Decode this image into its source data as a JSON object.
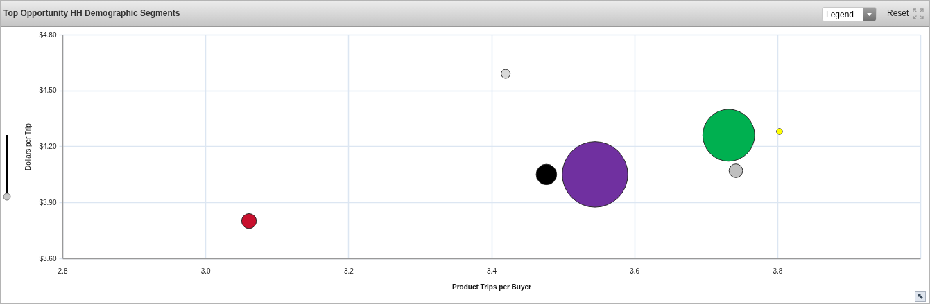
{
  "chart_data": {
    "type": "bubble",
    "title": "Top Opportunity HH Demographic Segments",
    "xlabel": "Product Trips per Buyer",
    "ylabel": "Dollars per Trip",
    "annotations": [
      "Legend",
      "Reset"
    ],
    "x": [
      3.061,
      3.42,
      3.477,
      3.545,
      3.732,
      3.742,
      3.803
    ],
    "values": [
      3.8,
      4.59,
      4.05,
      4.05,
      4.26,
      4.07,
      4.28
    ],
    "sizes": [
      0.051,
      0.019,
      0.098,
      1,
      0.627,
      0.043,
      0.008
    ],
    "colors": [
      "#c8102e",
      "#d9d9d9",
      "#000000",
      "#7030a0",
      "#00b050",
      "#bfbfbf",
      "#ffff00"
    ],
    "xlim": [
      2.8,
      4.0
    ],
    "xticks": [
      2.8,
      {
        "value": 3,
        "label": "3.0"
      },
      3.2,
      3.4,
      3.6,
      3.8,
      {
        "value": 4,
        "label": null
      }
    ],
    "ylim": [
      3.6,
      4.8
    ],
    "yticks": [
      {
        "value": 3.6,
        "label": "$3.60"
      },
      {
        "value": 3.9,
        "label": "$3.90"
      },
      {
        "value": 4.2,
        "label": "$4.20"
      },
      {
        "value": 4.5,
        "label": "$4.50"
      },
      {
        "value": 4.8,
        "label": "$4.80"
      }
    ],
    "grid": true,
    "marker": "circle"
  }
}
